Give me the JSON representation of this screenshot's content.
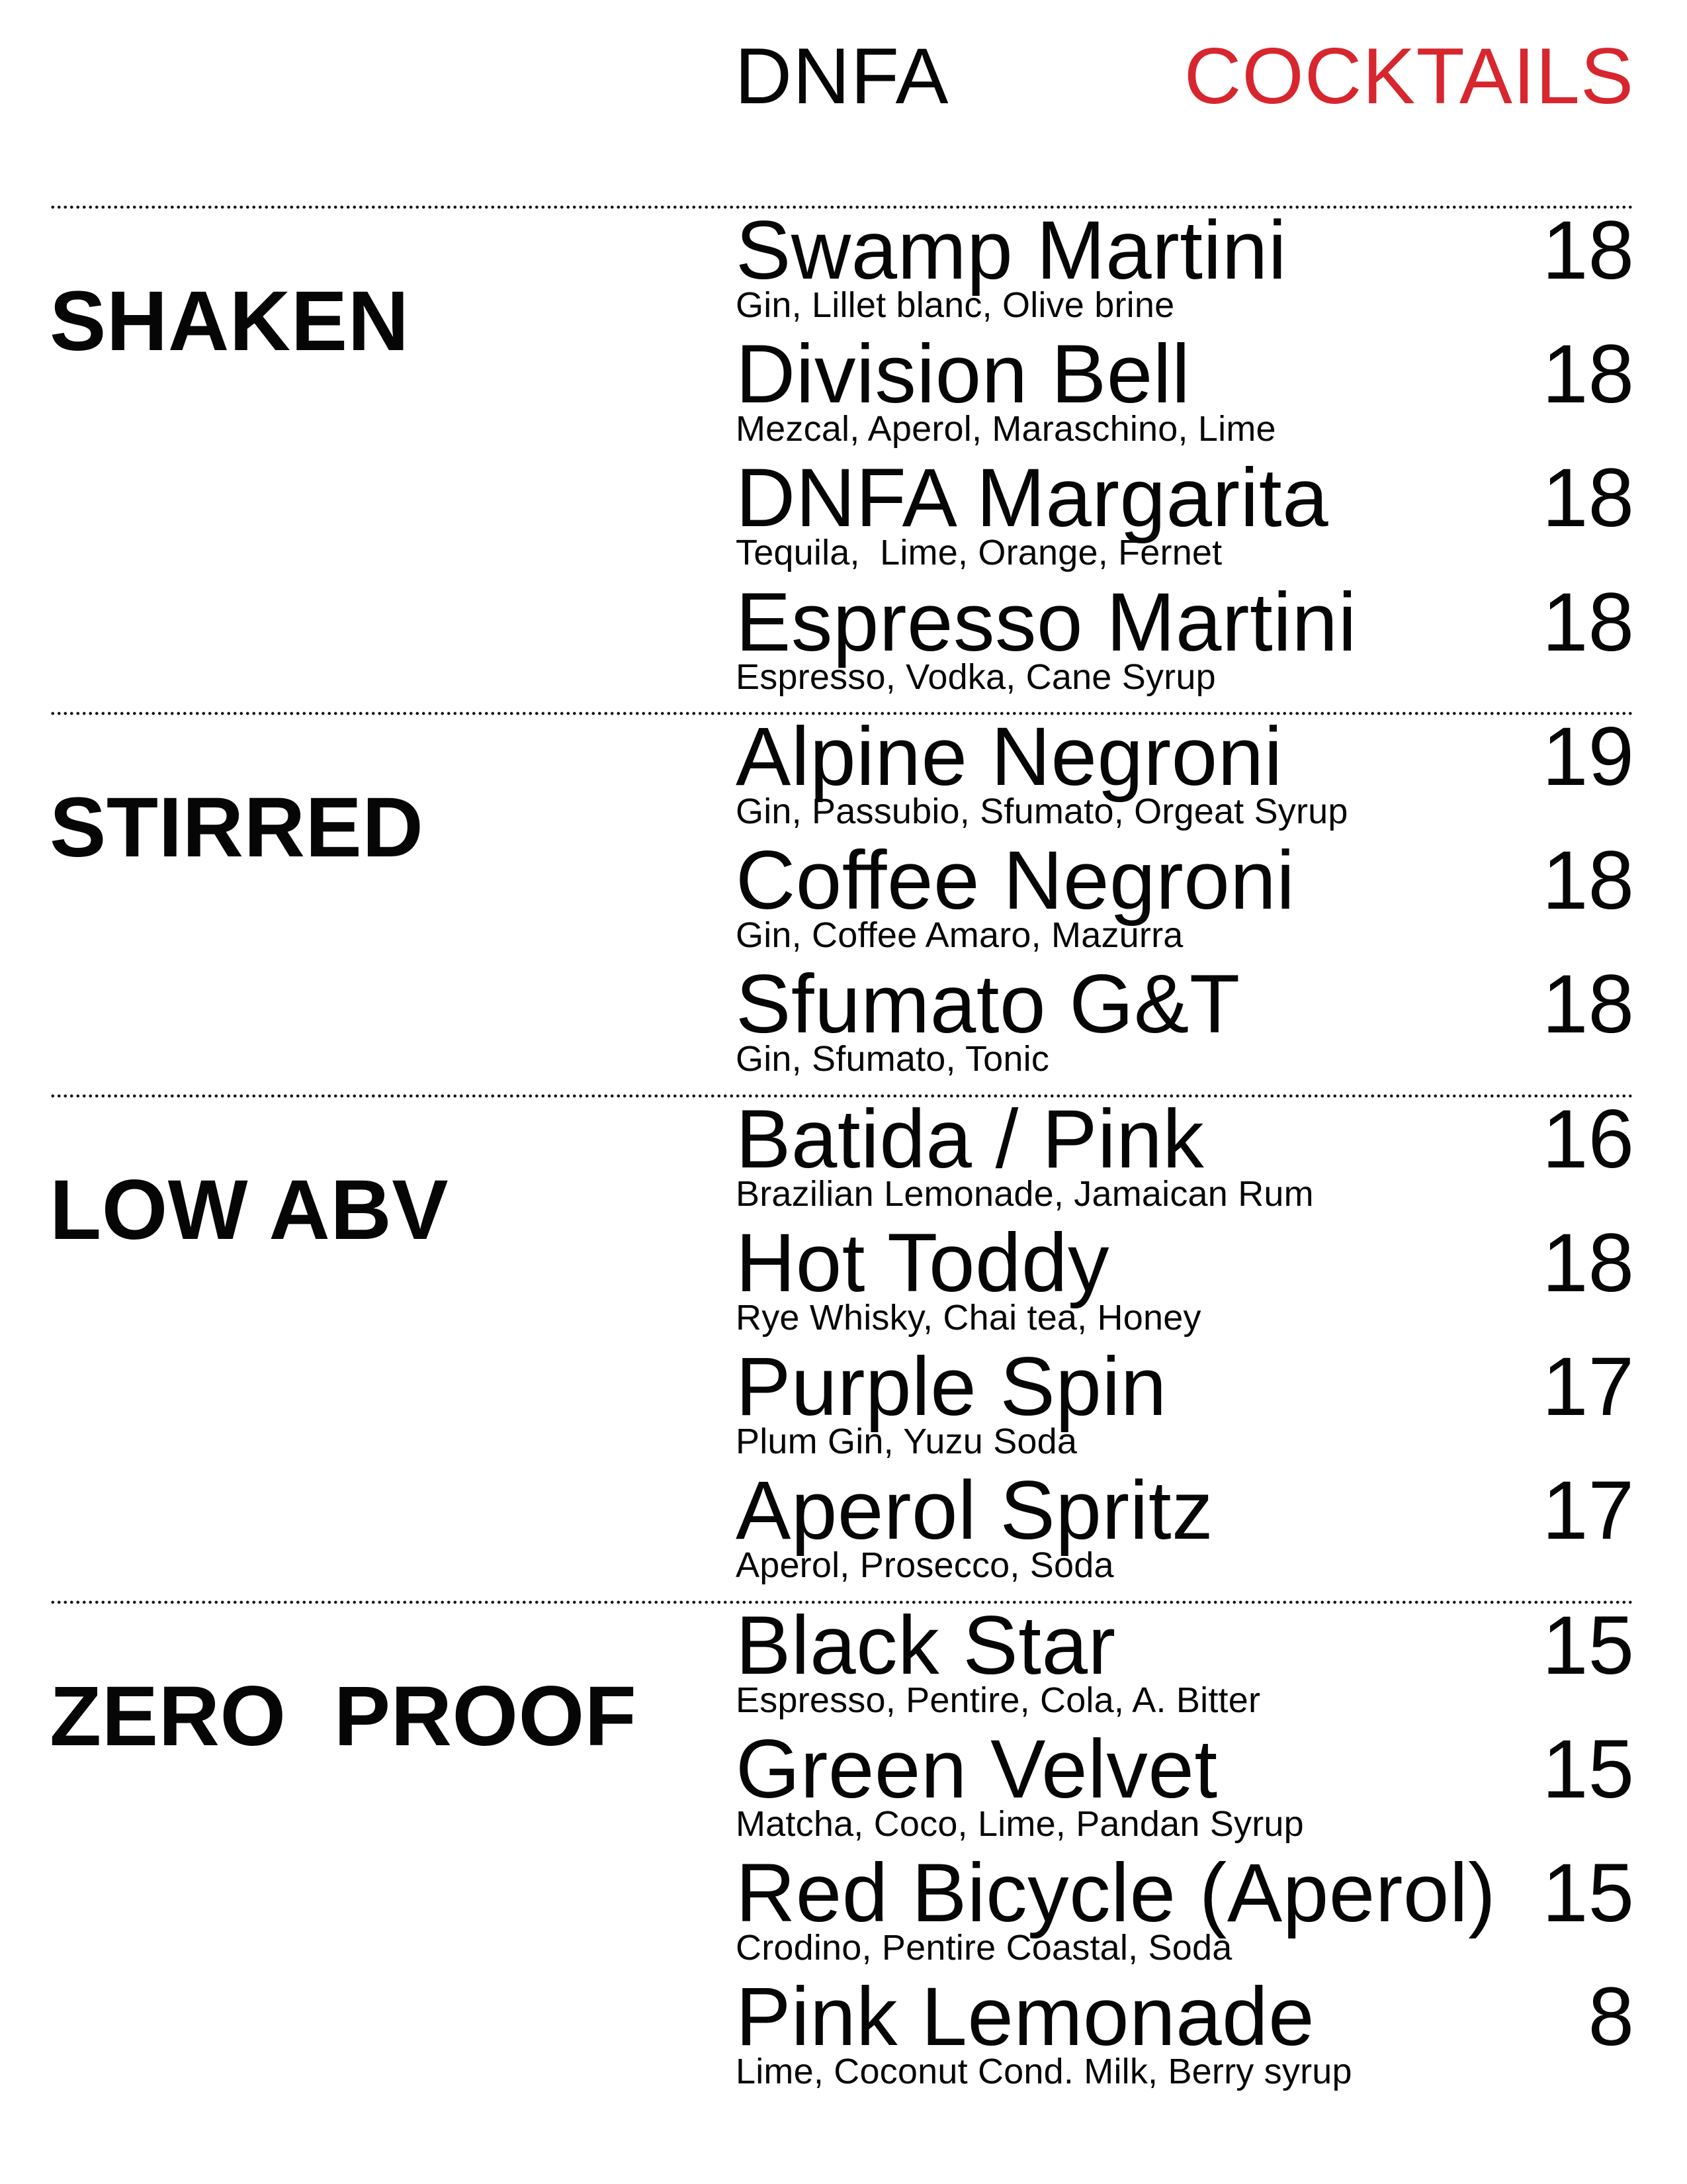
{
  "header": {
    "brand": "DNFA",
    "title": "COCKTAILS",
    "accent_color": "#D7262E"
  },
  "sections": [
    {
      "name": "SHAKEN",
      "items": [
        {
          "name": "Swamp Martini",
          "price": "18",
          "desc": "Gin, Lillet blanc, Olive brine"
        },
        {
          "name": "Division Bell",
          "price": "18",
          "desc": "Mezcal, Aperol, Maraschino, Lime"
        },
        {
          "name": "DNFA Margarita",
          "price": "18",
          "desc": "Tequila,  Lime, Orange, Fernet"
        },
        {
          "name": "Espresso Martini",
          "price": "18",
          "desc": "Espresso, Vodka, Cane Syrup"
        }
      ]
    },
    {
      "name": "STIRRED",
      "items": [
        {
          "name": "Alpine Negroni",
          "price": "19",
          "desc": "Gin, Passubio, Sfumato, Orgeat Syrup"
        },
        {
          "name": "Coffee Negroni",
          "price": "18",
          "desc": "Gin, Coffee Amaro, Mazurra"
        },
        {
          "name": "Sfumato G&T",
          "price": "18",
          "desc": "Gin, Sfumato, Tonic"
        }
      ]
    },
    {
      "name": "LOW ABV",
      "items": [
        {
          "name": "Batida / Pink",
          "price": "16",
          "desc": "Brazilian Lemonade, Jamaican Rum"
        },
        {
          "name": "Hot Toddy",
          "price": "18",
          "desc": "Rye Whisky, Chai tea, Honey"
        },
        {
          "name": "Purple Spin",
          "price": "17",
          "desc": "Plum Gin, Yuzu Soda"
        },
        {
          "name": "Aperol Spritz",
          "price": "17",
          "desc": "Aperol, Prosecco, Soda"
        }
      ]
    },
    {
      "name": "ZERO  PROOF",
      "items": [
        {
          "name": "Black Star",
          "price": "15",
          "desc": "Espresso, Pentire, Cola, A. Bitter"
        },
        {
          "name": "Green Velvet",
          "price": "15",
          "desc": "Matcha, Coco, Lime, Pandan Syrup"
        },
        {
          "name": "Red Bicycle (Aperol)",
          "price": "15",
          "desc": "Crodino, Pentire Coastal, Soda"
        },
        {
          "name": "Pink Lemonade",
          "price": "8",
          "desc": "Lime, Coconut Cond. Milk, Berry syrup"
        }
      ]
    }
  ]
}
